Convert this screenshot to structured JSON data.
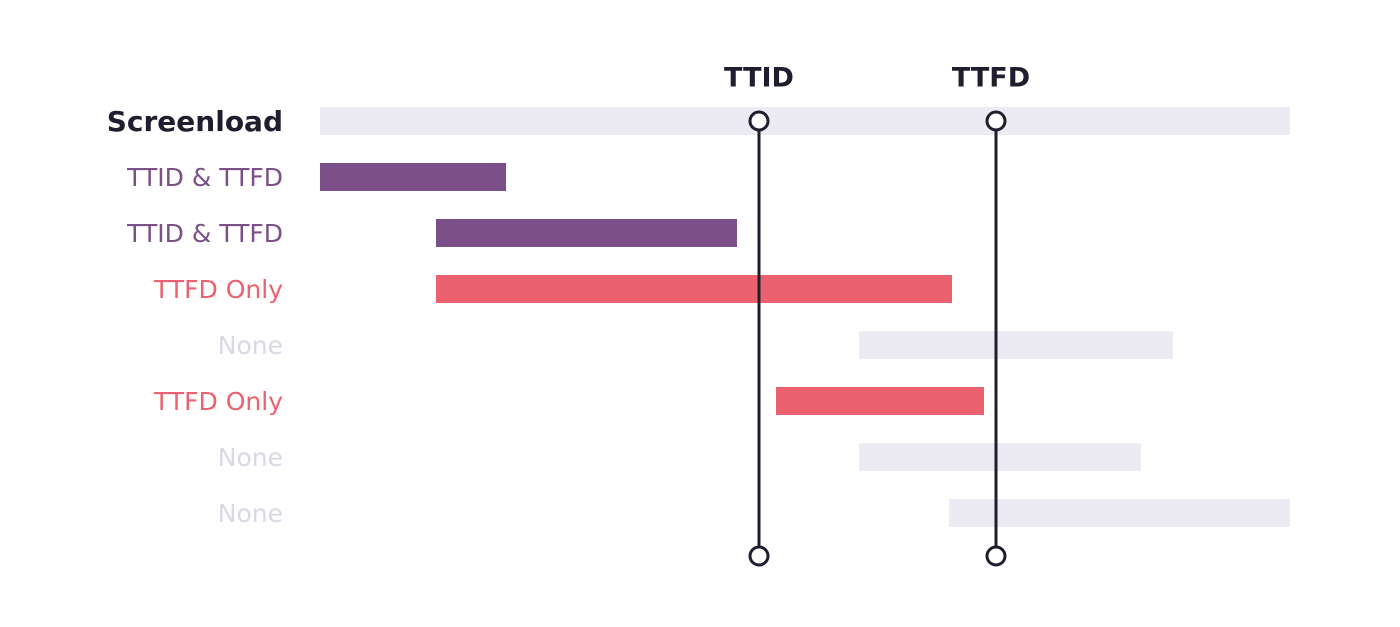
{
  "markers": [
    "TTID",
    "TTFD"
  ],
  "rows": [
    "Screenload",
    "TTID & TTFD",
    "TTID & TTFD",
    "TTFD Only",
    "None",
    "TTFD Only",
    "None",
    "None"
  ]
}
